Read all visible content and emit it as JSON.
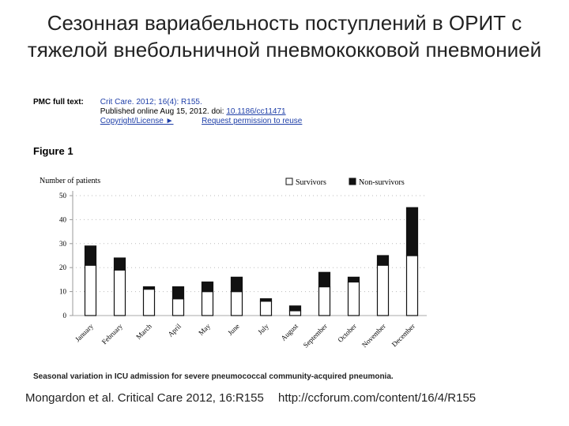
{
  "slide": {
    "title": "Сезонная вариабельность поступлений в ОРИТ с тяжелой внебольничной пневмококковой пневмонией",
    "citation_ref": "Mongardon et al. Critical Care 2012, 16:R155",
    "citation_url": "http://ccforum.com/content/16/4/R155"
  },
  "pmc": {
    "label": "PMC full text:",
    "journal": "Crit Care. 2012; 16(4): R155.",
    "published": "Published online Aug 15, 2012. doi:",
    "doi": "10.1186/cc11471",
    "copyright": "Copyright/License ►",
    "permission": "Request permission to reuse"
  },
  "figure": {
    "label": "Figure 1",
    "caption": "Seasonal variation in ICU admission for severe pneumococcal community-acquired pneumonia."
  },
  "chart_data": {
    "type": "bar",
    "stacked": true,
    "ylabel": "Number of patients",
    "ylim": [
      0,
      50
    ],
    "yticks": [
      0,
      10,
      20,
      30,
      40,
      50
    ],
    "legend_position": "top-right",
    "categories": [
      "January",
      "February",
      "March",
      "April",
      "May",
      "June",
      "July",
      "August",
      "September",
      "October",
      "November",
      "December"
    ],
    "series": [
      {
        "name": "Survivors",
        "color": "#ffffff",
        "values": [
          21,
          19,
          11,
          7,
          10,
          10,
          6,
          2,
          12,
          14,
          21,
          25
        ]
      },
      {
        "name": "Non-survivors",
        "color": "#111111",
        "values": [
          8,
          5,
          1,
          5,
          4,
          6,
          1,
          2,
          6,
          2,
          4,
          20
        ]
      }
    ]
  }
}
